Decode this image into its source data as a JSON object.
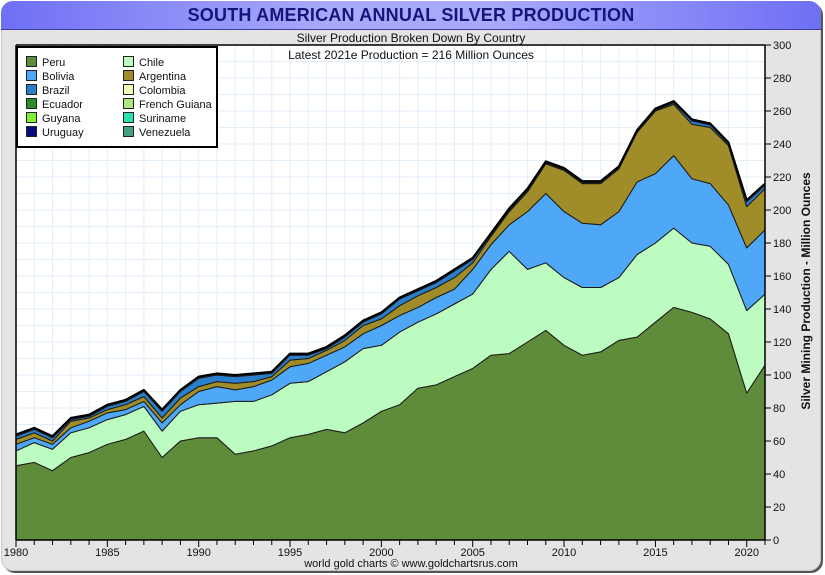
{
  "header": {
    "title": "SOUTH AMERICAN ANNUAL SILVER PRODUCTION",
    "subtitle": "Silver Production Broken Down By Country",
    "annotation": "Latest 2021e Production = 216 Million Ounces"
  },
  "footer": {
    "credit": "world gold charts © www.goldchartsrus.com"
  },
  "chart_data": {
    "type": "area",
    "stacked": true,
    "title": "SOUTH AMERICAN ANNUAL SILVER PRODUCTION",
    "subtitle": "Silver Production Broken Down By Country",
    "annotation": "Latest 2021e Production = 216 Million Ounces",
    "xlabel": "",
    "ylabel": "Silver Mining Production - Million Ounces",
    "xlim": [
      1980,
      2021
    ],
    "ylim": [
      0,
      300
    ],
    "x_ticks": [
      1980,
      1985,
      1990,
      1995,
      2000,
      2005,
      2010,
      2015,
      2020
    ],
    "y_ticks": [
      0,
      20,
      40,
      60,
      80,
      100,
      120,
      140,
      160,
      180,
      200,
      220,
      240,
      260,
      280,
      300
    ],
    "y_axis_side": "right",
    "grid": true,
    "legend_position": "top-left",
    "x": [
      1980,
      1981,
      1982,
      1983,
      1984,
      1985,
      1986,
      1987,
      1988,
      1989,
      1990,
      1991,
      1992,
      1993,
      1994,
      1995,
      1996,
      1997,
      1998,
      1999,
      2000,
      2001,
      2002,
      2003,
      2004,
      2005,
      2006,
      2007,
      2008,
      2009,
      2010,
      2011,
      2012,
      2013,
      2014,
      2015,
      2016,
      2017,
      2018,
      2019,
      2020,
      2021
    ],
    "series": [
      {
        "name": "Peru",
        "color": "#5e8c3a",
        "values": [
          45,
          47,
          42,
          50,
          53,
          58,
          61,
          66,
          50,
          60,
          62,
          62,
          52,
          54,
          57,
          62,
          64,
          67,
          65,
          71,
          78,
          82,
          92,
          94,
          99,
          104,
          112,
          113,
          120,
          127,
          118,
          112,
          114,
          121,
          123,
          132,
          141,
          138,
          134,
          125,
          89,
          106
        ]
      },
      {
        "name": "Chile",
        "color": "#bcfcc0",
        "values": [
          9,
          12,
          13,
          15,
          15,
          15,
          15,
          15,
          16,
          18,
          20,
          21,
          32,
          30,
          31,
          33,
          32,
          35,
          43,
          45,
          40,
          44,
          40,
          43,
          44,
          45,
          52,
          62,
          44,
          41,
          41,
          41,
          39,
          38,
          50,
          48,
          48,
          42,
          44,
          42,
          50,
          43
        ]
      },
      {
        "name": "Bolivia",
        "color": "#4ea8f7",
        "values": [
          4,
          3,
          3,
          3,
          4,
          4,
          3,
          3,
          5,
          4,
          8,
          10,
          7,
          9,
          9,
          10,
          11,
          10,
          9,
          9,
          12,
          10,
          9,
          10,
          9,
          15,
          15,
          16,
          35,
          42,
          40,
          39,
          38,
          40,
          44,
          42,
          44,
          39,
          38,
          36,
          38,
          39
        ]
      },
      {
        "name": "Argentina",
        "color": "#a08c28",
        "values": [
          3,
          3,
          2,
          4,
          2,
          2,
          3,
          3,
          3,
          4,
          3,
          3,
          4,
          3,
          2,
          4,
          3,
          3,
          4,
          5,
          4,
          6,
          7,
          6,
          7,
          4,
          5,
          8,
          12,
          18,
          25,
          24,
          25,
          26,
          30,
          38,
          31,
          33,
          34,
          36,
          25,
          25
        ]
      },
      {
        "name": "Brazil",
        "color": "#2a7fcc",
        "values": [
          2,
          2,
          2,
          1,
          1,
          2,
          2,
          3,
          4,
          4,
          5,
          4,
          4,
          4,
          2,
          3,
          2,
          1,
          2,
          2,
          3,
          4,
          3,
          3,
          4,
          2,
          1,
          1,
          1,
          0.5,
          0.5,
          0.5,
          0.5,
          0.5,
          0.5,
          0.5,
          1,
          2,
          1.5,
          1,
          3,
          2
        ]
      },
      {
        "name": "Colombia",
        "color": "#e8fcb8",
        "values": [
          0.5,
          0.5,
          0.5,
          0.5,
          0.5,
          0.5,
          0.5,
          0.5,
          0.5,
          0.5,
          0.5,
          0.5,
          0.5,
          0.5,
          0.5,
          0.5,
          0.5,
          0.5,
          0.5,
          0.5,
          0.5,
          0.5,
          0.5,
          0.5,
          0.5,
          0.5,
          0.5,
          0.5,
          0.5,
          0.5,
          0.5,
          0.5,
          0.5,
          0.5,
          0.5,
          0.5,
          0.5,
          0.5,
          0.5,
          0.5,
          0.5,
          0.5
        ]
      },
      {
        "name": "Ecuador",
        "color": "#2a8c2a",
        "values": [
          0.2,
          0.2,
          0.2,
          0.2,
          0.2,
          0.2,
          0.2,
          0.2,
          0.2,
          0.2,
          0.2,
          0.2,
          0.2,
          0.2,
          0.2,
          0.2,
          0.2,
          0.2,
          0.2,
          0.2,
          0.2,
          0.2,
          0.2,
          0.2,
          0.2,
          0.2,
          0.2,
          0.2,
          0.2,
          0.2,
          0.2,
          0.2,
          0.2,
          0.2,
          0.2,
          0.2,
          0.2,
          0.2,
          0.2,
          0.2,
          0.2,
          0.2
        ]
      },
      {
        "name": "French Guiana",
        "color": "#b0e680",
        "values": [
          0,
          0,
          0,
          0,
          0,
          0,
          0,
          0,
          0,
          0,
          0,
          0,
          0,
          0,
          0,
          0,
          0,
          0,
          0,
          0,
          0,
          0,
          0,
          0,
          0,
          0,
          0,
          0,
          0,
          0,
          0,
          0,
          0,
          0,
          0,
          0,
          0,
          0,
          0,
          0,
          0,
          0
        ]
      },
      {
        "name": "Guyana",
        "color": "#80f030",
        "values": [
          0,
          0,
          0,
          0,
          0,
          0,
          0,
          0,
          0,
          0,
          0,
          0,
          0,
          0,
          0,
          0,
          0,
          0,
          0,
          0,
          0,
          0,
          0,
          0,
          0,
          0,
          0,
          0,
          0,
          0,
          0,
          0,
          0,
          0,
          0,
          0,
          0,
          0,
          0,
          0,
          0,
          0
        ]
      },
      {
        "name": "Suriname",
        "color": "#28e0b0",
        "values": [
          0,
          0,
          0,
          0,
          0,
          0,
          0,
          0,
          0,
          0,
          0,
          0,
          0,
          0,
          0,
          0,
          0,
          0,
          0,
          0,
          0,
          0,
          0,
          0,
          0,
          0,
          0,
          0,
          0,
          0,
          0,
          0,
          0,
          0,
          0,
          0,
          0,
          0,
          0,
          0,
          0,
          0
        ]
      },
      {
        "name": "Uruguay",
        "color": "#0a0a80",
        "values": [
          0,
          0,
          0,
          0,
          0,
          0,
          0,
          0,
          0,
          0,
          0,
          0,
          0,
          0,
          0,
          0,
          0,
          0,
          0,
          0,
          0,
          0,
          0,
          0,
          0,
          0,
          0,
          0,
          0,
          0,
          0,
          0,
          0,
          0,
          0,
          0,
          0,
          0,
          0,
          0,
          0,
          0
        ]
      },
      {
        "name": "Venezuela",
        "color": "#48a080",
        "values": [
          0.3,
          0.3,
          0.3,
          0.3,
          0.3,
          0.3,
          0.3,
          0.3,
          0.3,
          0.3,
          0.3,
          0.3,
          0.3,
          0.3,
          0.3,
          0.3,
          0.3,
          0.3,
          0.3,
          0.3,
          0.3,
          0.3,
          0.3,
          0.3,
          0.3,
          0.3,
          0.3,
          0.3,
          0.3,
          0.3,
          0.3,
          0.3,
          0.3,
          0.3,
          0.3,
          0.3,
          0.3,
          0.3,
          0.3,
          0.3,
          0.3,
          0.3
        ]
      }
    ],
    "legend": [
      {
        "name": "Peru",
        "color": "#5e8c3a"
      },
      {
        "name": "Chile",
        "color": "#bcfcc0"
      },
      {
        "name": "Bolivia",
        "color": "#4ea8f7"
      },
      {
        "name": "Argentina",
        "color": "#a08c28"
      },
      {
        "name": "Brazil",
        "color": "#2a7fcc"
      },
      {
        "name": "Colombia",
        "color": "#e8fcb8"
      },
      {
        "name": "Ecuador",
        "color": "#2a8c2a"
      },
      {
        "name": "French Guiana",
        "color": "#b0e680"
      },
      {
        "name": "Guyana",
        "color": "#80f030"
      },
      {
        "name": "Suriname",
        "color": "#28e0b0"
      },
      {
        "name": "Uruguay",
        "color": "#0a0a80"
      },
      {
        "name": "Venezuela",
        "color": "#48a080"
      }
    ]
  }
}
